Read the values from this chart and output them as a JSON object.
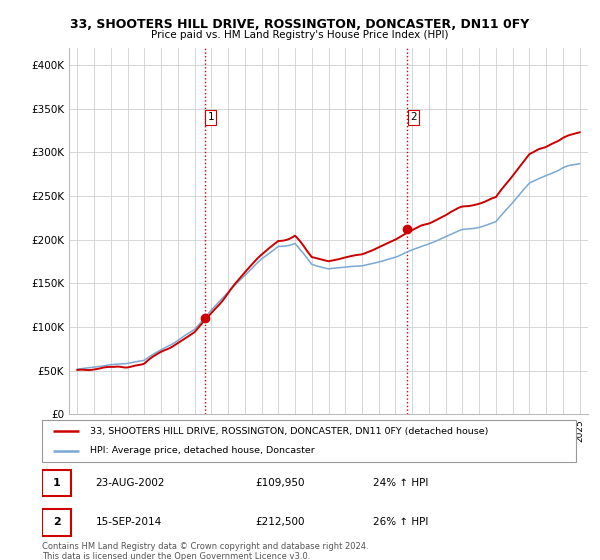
{
  "title": "33, SHOOTERS HILL DRIVE, ROSSINGTON, DONCASTER, DN11 0FY",
  "subtitle": "Price paid vs. HM Land Registry's House Price Index (HPI)",
  "ylabel_ticks": [
    "£0",
    "£50K",
    "£100K",
    "£150K",
    "£200K",
    "£250K",
    "£300K",
    "£350K",
    "£400K"
  ],
  "ytick_vals": [
    0,
    50000,
    100000,
    150000,
    200000,
    250000,
    300000,
    350000,
    400000
  ],
  "ylim": [
    0,
    420000
  ],
  "legend_line1": "33, SHOOTERS HILL DRIVE, ROSSINGTON, DONCASTER, DN11 0FY (detached house)",
  "legend_line2": "HPI: Average price, detached house, Doncaster",
  "marker1_date": "23-AUG-2002",
  "marker1_price": "£109,950",
  "marker1_hpi": "24% ↑ HPI",
  "marker2_date": "15-SEP-2014",
  "marker2_price": "£212,500",
  "marker2_hpi": "26% ↑ HPI",
  "footer": "Contains HM Land Registry data © Crown copyright and database right 2024.\nThis data is licensed under the Open Government Licence v3.0.",
  "hpi_color": "#7aa8d2",
  "price_color": "#cc0000",
  "vline_color": "#cc0000",
  "background_color": "#ffffff",
  "grid_color": "#d0d0d0",
  "sale1_year": 2002.622,
  "sale2_year": 2014.706,
  "sale1_price": 109950,
  "sale2_price": 212500,
  "xstart": 1995,
  "xend": 2025
}
